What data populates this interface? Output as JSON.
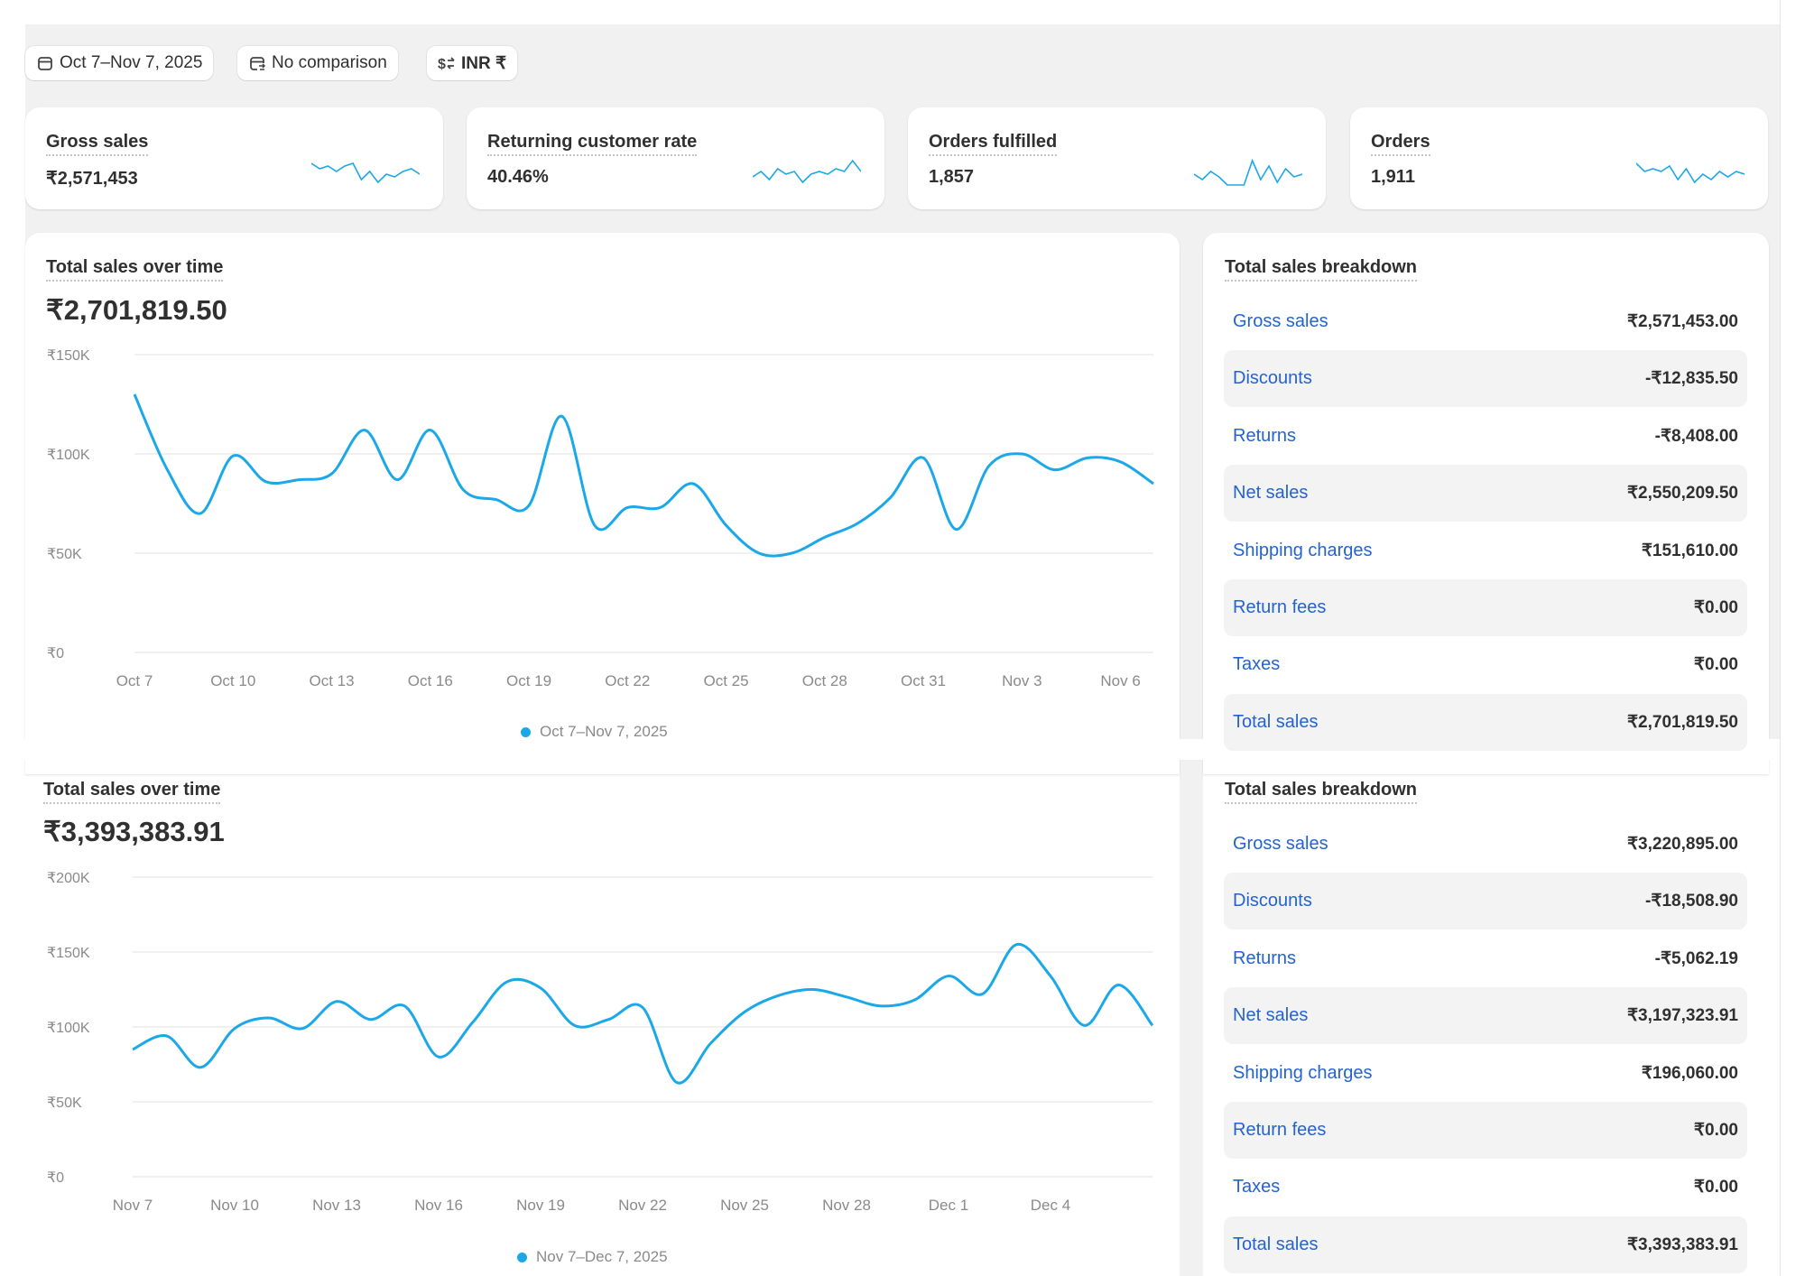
{
  "filters": {
    "date_range": "Oct 7–Nov 7, 2025",
    "comparison": "No comparison",
    "currency": "INR ₹"
  },
  "kpis": [
    {
      "title": "Gross sales",
      "value": "₹2,571,453",
      "spark": [
        9,
        7,
        8,
        6,
        8,
        9,
        3,
        6,
        2,
        5,
        4,
        6,
        7,
        5
      ]
    },
    {
      "title": "Returning customer rate",
      "value": "40.46%",
      "spark": [
        4,
        6,
        3,
        7,
        5,
        6,
        2,
        5,
        6,
        5,
        7,
        6,
        10,
        6
      ]
    },
    {
      "title": "Orders fulfilled",
      "value": "1,857",
      "spark": [
        5,
        3,
        6,
        4,
        1,
        1,
        1,
        10,
        3,
        8,
        2,
        7,
        4,
        5
      ]
    },
    {
      "title": "Orders",
      "value": "1,911",
      "spark": [
        9,
        6,
        7,
        6,
        8,
        3,
        7,
        2,
        5,
        3,
        6,
        4,
        6,
        5
      ]
    }
  ],
  "colors": {
    "line": "#1ba8e8",
    "link": "#2463d1",
    "background": "#f1f1f1"
  },
  "sections": [
    {
      "chart_title": "Total sales over time",
      "chart_total": "₹2,701,819.50",
      "breakdown_title": "Total sales breakdown",
      "breakdown": [
        {
          "label": "Gross sales",
          "value": "₹2,571,453.00"
        },
        {
          "label": "Discounts",
          "value": "-₹12,835.50"
        },
        {
          "label": "Returns",
          "value": "-₹8,408.00"
        },
        {
          "label": "Net sales",
          "value": "₹2,550,209.50"
        },
        {
          "label": "Shipping charges",
          "value": "₹151,610.00"
        },
        {
          "label": "Return fees",
          "value": "₹0.00"
        },
        {
          "label": "Taxes",
          "value": "₹0.00"
        },
        {
          "label": "Total sales",
          "value": "₹2,701,819.50"
        }
      ]
    },
    {
      "chart_title": "Total sales over time",
      "chart_total": "₹3,393,383.91",
      "breakdown_title": "Total sales breakdown",
      "breakdown": [
        {
          "label": "Gross sales",
          "value": "₹3,220,895.00"
        },
        {
          "label": "Discounts",
          "value": "-₹18,508.90"
        },
        {
          "label": "Returns",
          "value": "-₹5,062.19"
        },
        {
          "label": "Net sales",
          "value": "₹3,197,323.91"
        },
        {
          "label": "Shipping charges",
          "value": "₹196,060.00"
        },
        {
          "label": "Return fees",
          "value": "₹0.00"
        },
        {
          "label": "Taxes",
          "value": "₹0.00"
        },
        {
          "label": "Total sales",
          "value": "₹3,393,383.91"
        }
      ]
    }
  ],
  "chart_data": [
    {
      "type": "line",
      "title": "Total sales over time",
      "x_start": "Oct 7",
      "xtick_labels": [
        "Oct 7",
        "Oct 10",
        "Oct 13",
        "Oct 16",
        "Oct 19",
        "Oct 22",
        "Oct 25",
        "Oct 28",
        "Oct 31",
        "Nov 3",
        "Nov 6"
      ],
      "ytick_labels": [
        "₹0",
        "₹50K",
        "₹100K",
        "₹150K"
      ],
      "ylim": [
        0,
        150000
      ],
      "grid": true,
      "legend_position": "bottom",
      "series": [
        {
          "name": "Oct 7–Nov 7, 2025",
          "values": [
            130000,
            92000,
            70000,
            99000,
            86000,
            87000,
            90000,
            112000,
            87000,
            112000,
            82000,
            77000,
            74000,
            119000,
            64000,
            73000,
            73000,
            85000,
            64000,
            50000,
            50000,
            58000,
            65000,
            78000,
            98000,
            62000,
            94000,
            100000,
            92000,
            98000,
            96000,
            85000
          ]
        }
      ]
    },
    {
      "type": "line",
      "title": "Total sales over time",
      "x_start": "Nov 7",
      "xtick_labels": [
        "Nov 7",
        "Nov 10",
        "Nov 13",
        "Nov 16",
        "Nov 19",
        "Nov 22",
        "Nov 25",
        "Nov 28",
        "Dec 1",
        "Dec 4"
      ],
      "ytick_labels": [
        "₹0",
        "₹50K",
        "₹100K",
        "₹150K",
        "₹200K"
      ],
      "ylim": [
        0,
        200000
      ],
      "grid": true,
      "legend_position": "bottom",
      "series": [
        {
          "name": "Nov 7–Dec 7, 2025",
          "values": [
            85000,
            94000,
            73000,
            99000,
            106000,
            99000,
            117000,
            105000,
            114000,
            80000,
            103000,
            130000,
            126000,
            101000,
            105000,
            113000,
            63000,
            89000,
            110000,
            121000,
            125000,
            120000,
            114000,
            118000,
            134000,
            122000,
            155000,
            134000,
            101000,
            128000,
            101000
          ]
        }
      ]
    }
  ]
}
